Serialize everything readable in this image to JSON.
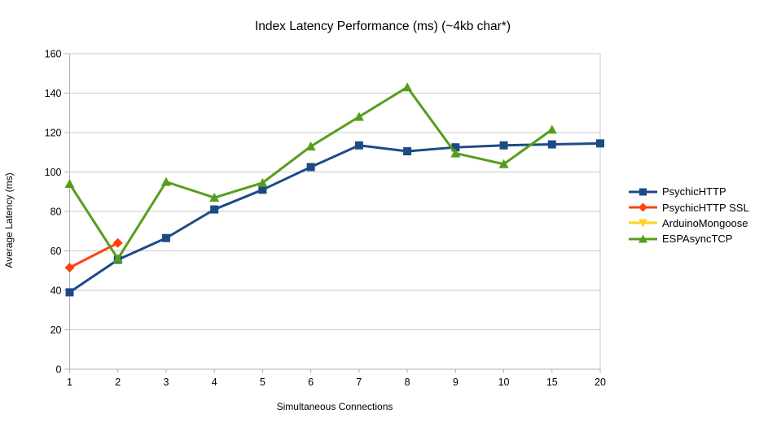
{
  "chart_data": {
    "type": "line",
    "title": "Index Latency Performance (ms) (~4kb char*)",
    "xlabel": "Simultaneous Connections",
    "ylabel": "Average Latency (ms)",
    "categories": [
      "1",
      "2",
      "3",
      "4",
      "5",
      "6",
      "7",
      "8",
      "9",
      "10",
      "15",
      "20"
    ],
    "ylim": [
      0,
      160
    ],
    "ytick_step": 20,
    "grid": true,
    "legend_position": "right",
    "series": [
      {
        "name": "PsychicHTTP",
        "color": "#1B4B87",
        "marker": "square",
        "values": [
          39,
          55.5,
          66.5,
          81,
          91,
          102.5,
          113.5,
          110.5,
          112.5,
          113.5,
          114,
          114.5
        ]
      },
      {
        "name": "PsychicHTTP SSL",
        "color": "#FF420E",
        "marker": "diamond",
        "values": [
          51.5,
          64,
          null,
          null,
          null,
          null,
          null,
          null,
          null,
          null,
          null,
          null
        ]
      },
      {
        "name": "ArduinoMongoose",
        "color": "#FFD320",
        "marker": "triangle-down",
        "values": [
          null,
          null,
          null,
          null,
          null,
          null,
          null,
          null,
          null,
          null,
          null,
          null
        ]
      },
      {
        "name": "ESPAsyncTCP",
        "color": "#579D1C",
        "marker": "triangle-up",
        "values": [
          94,
          56,
          95,
          87,
          94.5,
          113,
          128,
          143,
          109.5,
          104,
          121.5,
          null
        ]
      }
    ],
    "axis_color": "#b0b0b0",
    "grid_color": "#c9c9c9"
  }
}
